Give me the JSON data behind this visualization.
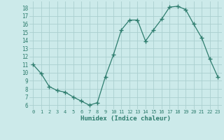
{
  "x": [
    0,
    1,
    2,
    3,
    4,
    5,
    6,
    7,
    8,
    9,
    10,
    11,
    12,
    13,
    14,
    15,
    16,
    17,
    18,
    19,
    20,
    21,
    22,
    23
  ],
  "y": [
    11,
    9.9,
    8.3,
    7.8,
    7.6,
    7.0,
    6.5,
    6.0,
    6.3,
    9.5,
    12.2,
    15.3,
    16.5,
    16.5,
    13.9,
    15.3,
    16.6,
    18.1,
    18.2,
    17.8,
    16.0,
    14.3,
    11.7,
    9.5
  ],
  "line_color": "#2e7d6e",
  "marker": "+",
  "marker_size": 4,
  "marker_lw": 1.0,
  "xlabel": "Humidex (Indice chaleur)",
  "xlim": [
    -0.5,
    23.5
  ],
  "ylim": [
    5.5,
    18.8
  ],
  "yticks": [
    6,
    7,
    8,
    9,
    10,
    11,
    12,
    13,
    14,
    15,
    16,
    17,
    18
  ],
  "xticks": [
    0,
    1,
    2,
    3,
    4,
    5,
    6,
    7,
    8,
    9,
    10,
    11,
    12,
    13,
    14,
    15,
    16,
    17,
    18,
    19,
    20,
    21,
    22,
    23
  ],
  "xtick_labels": [
    "0",
    "1",
    "2",
    "3",
    "4",
    "5",
    "6",
    "7",
    "8",
    "9",
    "10",
    "11",
    "12",
    "13",
    "14",
    "15",
    "16",
    "17",
    "18",
    "19",
    "20",
    "21",
    "22",
    "23"
  ],
  "bg_color": "#cceaea",
  "grid_color": "#aacfcf",
  "line_width": 0.9
}
